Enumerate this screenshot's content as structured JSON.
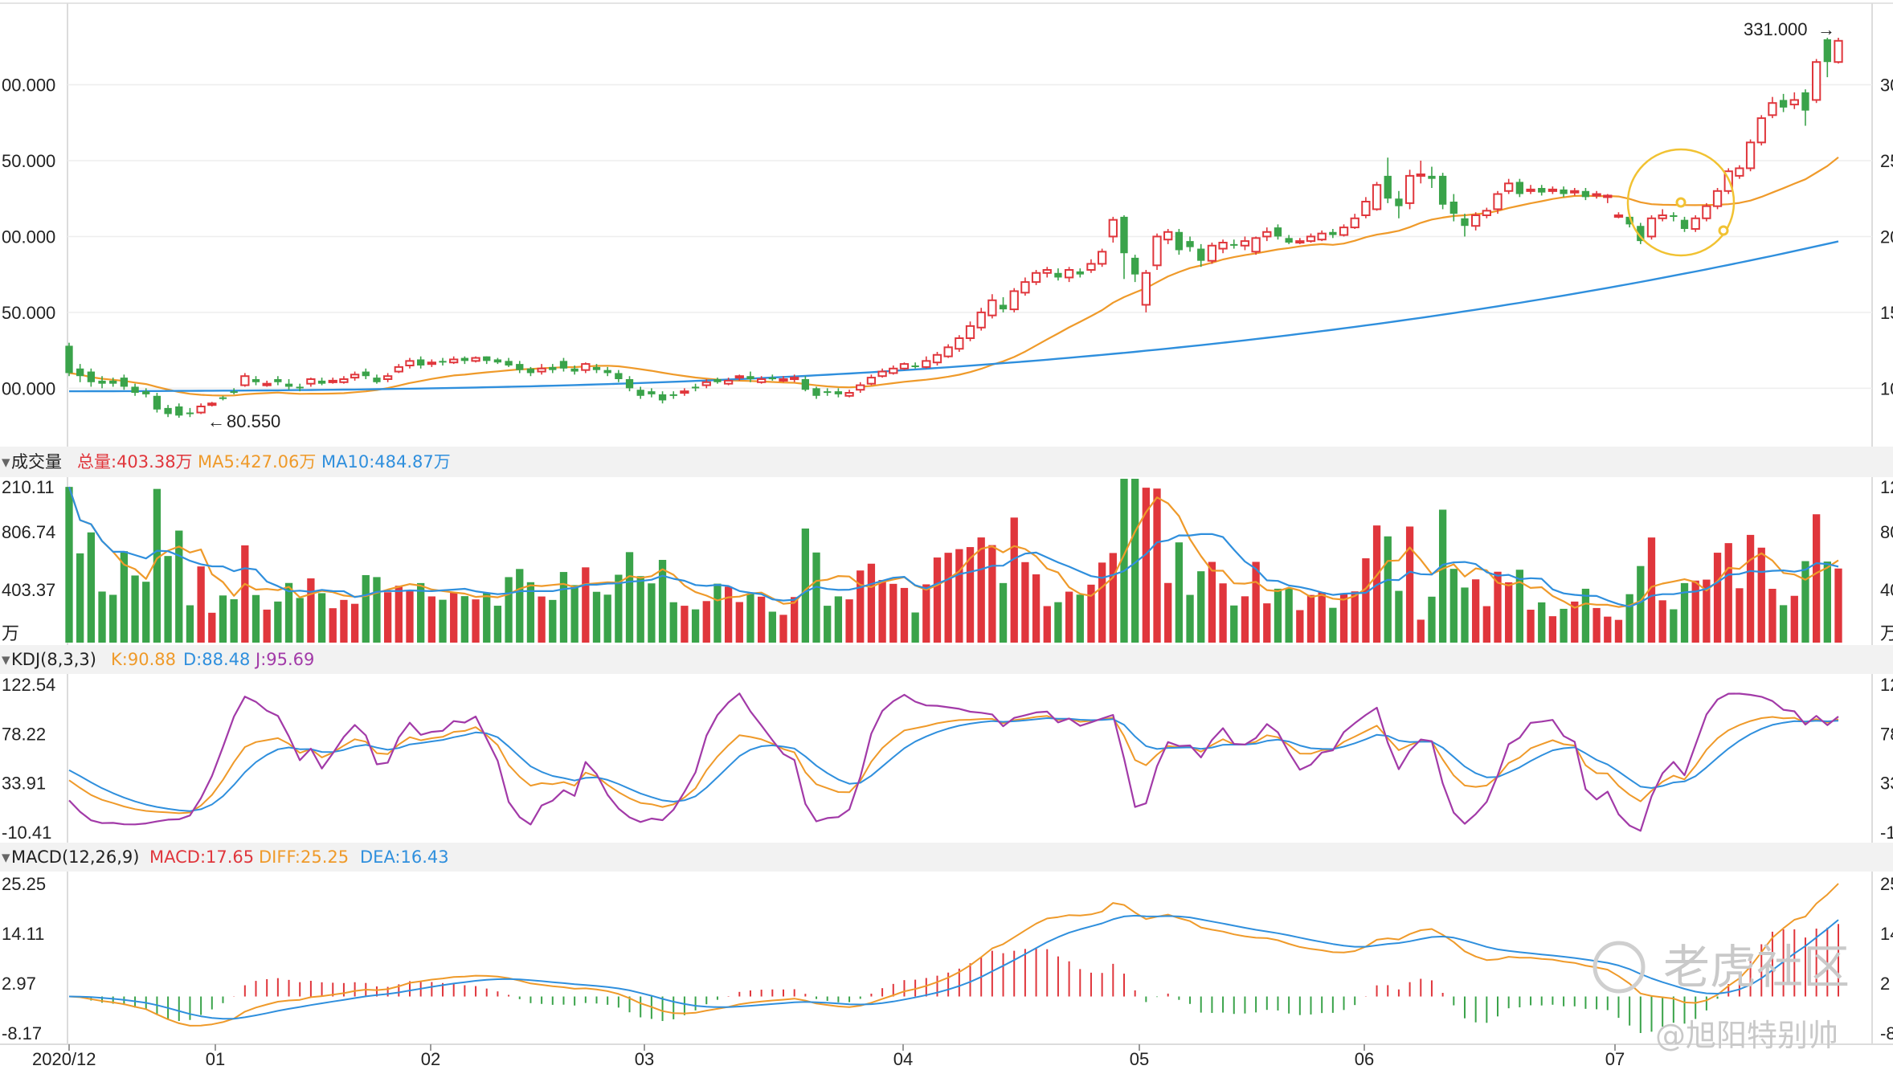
{
  "colors": {
    "up": "#e0363c",
    "down": "#3aa34a",
    "ma_orange": "#ef9a2a",
    "ma_blue": "#2f8fdd",
    "kdj_j": "#a23aa8",
    "grid": "#eeeeee",
    "panel_header": "#f2f2f2",
    "highlight": "#f1c232"
  },
  "watermark": {
    "text": "老虎社区",
    "author": "@旭阳特别帅"
  },
  "price_panel": {
    "ylabels_left": [
      "00.000",
      "50.000",
      "00.000",
      "50.000",
      "00.000"
    ],
    "ylabels_right": [
      "30",
      "25",
      "20",
      "15",
      "10"
    ],
    "high_label": "331.000",
    "low_label": "80.550"
  },
  "volume_panel": {
    "header": {
      "name": "成交量",
      "total": "总量:403.38万",
      "ma5": "MA5:427.06万",
      "ma10": "MA10:484.87万"
    },
    "ylabels_left": [
      "210.11",
      "806.74",
      "403.37",
      "万"
    ],
    "ylabels_right": [
      "12",
      "80",
      "40",
      "万"
    ]
  },
  "kdj_panel": {
    "header": {
      "name": "KDJ(8,3,3)",
      "k": "K:90.88",
      "d": "D:88.48",
      "j": "J:95.69"
    },
    "ylabels_left": [
      "122.54",
      "78.22",
      "33.91",
      "-10.41"
    ],
    "ylabels_right": [
      "12",
      "78",
      "33",
      "-1"
    ]
  },
  "macd_panel": {
    "header": {
      "name": "MACD(12,26,9)",
      "macd": "MACD:17.65",
      "diff": "DIFF:25.25",
      "dea": "DEA:16.43"
    },
    "ylabels_left": [
      "25.25",
      "14.11",
      "2.97",
      "-8.17"
    ],
    "ylabels_right": [
      "25",
      "14",
      "2",
      "-8"
    ]
  },
  "x_axis": {
    "labels": [
      "2020/12",
      "01",
      "02",
      "03",
      "04",
      "05",
      "06",
      "07"
    ]
  },
  "chart_data": {
    "type": "candlestick",
    "period": "daily",
    "x_range": [
      "2020/12",
      "2021/07"
    ],
    "price_ylim": [
      70,
      340
    ],
    "price_high": 331.0,
    "price_low": 80.55,
    "candles": [
      {
        "o": 128,
        "c": 110,
        "h": 130,
        "l": 108
      },
      {
        "o": 113,
        "c": 108,
        "h": 116,
        "l": 104
      },
      {
        "o": 111,
        "c": 104,
        "h": 113,
        "l": 101
      },
      {
        "o": 105,
        "c": 103,
        "h": 108,
        "l": 100
      },
      {
        "o": 105,
        "c": 103,
        "h": 107,
        "l": 101
      },
      {
        "o": 107,
        "c": 101,
        "h": 109,
        "l": 99
      },
      {
        "o": 101,
        "c": 97,
        "h": 103,
        "l": 95
      },
      {
        "o": 98,
        "c": 96,
        "h": 100,
        "l": 94
      },
      {
        "o": 95,
        "c": 86,
        "h": 97,
        "l": 84
      },
      {
        "o": 87,
        "c": 83,
        "h": 89,
        "l": 81
      },
      {
        "o": 88,
        "c": 82,
        "h": 90,
        "l": 80.55
      },
      {
        "o": 84,
        "c": 83,
        "h": 87,
        "l": 81
      },
      {
        "o": 84,
        "c": 88,
        "h": 90,
        "l": 83
      },
      {
        "o": 89,
        "c": 90,
        "h": 91,
        "l": 88
      },
      {
        "o": 94,
        "c": 93,
        "h": 95,
        "l": 92
      },
      {
        "o": 98,
        "c": 97,
        "h": 100,
        "l": 96
      },
      {
        "o": 102,
        "c": 108,
        "h": 110,
        "l": 101
      },
      {
        "o": 106,
        "c": 104,
        "h": 108,
        "l": 102
      },
      {
        "o": 102,
        "c": 103,
        "h": 105,
        "l": 101
      },
      {
        "o": 106,
        "c": 104,
        "h": 108,
        "l": 102
      },
      {
        "o": 103,
        "c": 101,
        "h": 106,
        "l": 99
      },
      {
        "o": 101,
        "c": 100,
        "h": 103,
        "l": 98
      },
      {
        "o": 103,
        "c": 106,
        "h": 107,
        "l": 101
      },
      {
        "o": 105,
        "c": 103,
        "h": 107,
        "l": 102
      },
      {
        "o": 104,
        "c": 105,
        "h": 107,
        "l": 103
      },
      {
        "o": 104,
        "c": 106,
        "h": 108,
        "l": 103
      },
      {
        "o": 107,
        "c": 109,
        "h": 111,
        "l": 105
      },
      {
        "o": 111,
        "c": 108,
        "h": 113,
        "l": 106
      },
      {
        "o": 107,
        "c": 104,
        "h": 109,
        "l": 103
      },
      {
        "o": 106,
        "c": 108,
        "h": 110,
        "l": 104
      },
      {
        "o": 111,
        "c": 114,
        "h": 116,
        "l": 110
      },
      {
        "o": 115,
        "c": 118,
        "h": 120,
        "l": 113
      },
      {
        "o": 119,
        "c": 115,
        "h": 121,
        "l": 113
      },
      {
        "o": 116,
        "c": 117,
        "h": 119,
        "l": 114
      },
      {
        "o": 118,
        "c": 117,
        "h": 120,
        "l": 115
      },
      {
        "o": 117,
        "c": 119,
        "h": 121,
        "l": 116
      },
      {
        "o": 120,
        "c": 118,
        "h": 121,
        "l": 116
      },
      {
        "o": 118,
        "c": 120,
        "h": 121,
        "l": 117
      },
      {
        "o": 121,
        "c": 118,
        "h": 121,
        "l": 116
      },
      {
        "o": 119,
        "c": 117,
        "h": 120,
        "l": 116
      },
      {
        "o": 118,
        "c": 115,
        "h": 120,
        "l": 114
      },
      {
        "o": 116,
        "c": 112,
        "h": 118,
        "l": 110
      },
      {
        "o": 113,
        "c": 110,
        "h": 114,
        "l": 108
      },
      {
        "o": 111,
        "c": 113,
        "h": 116,
        "l": 109
      },
      {
        "o": 114,
        "c": 112,
        "h": 116,
        "l": 110
      },
      {
        "o": 118,
        "c": 113,
        "h": 120,
        "l": 111
      },
      {
        "o": 113,
        "c": 111,
        "h": 115,
        "l": 109
      },
      {
        "o": 112,
        "c": 116,
        "h": 117,
        "l": 110
      },
      {
        "o": 114,
        "c": 112,
        "h": 116,
        "l": 110
      },
      {
        "o": 112,
        "c": 110,
        "h": 114,
        "l": 108
      },
      {
        "o": 110,
        "c": 106,
        "h": 112,
        "l": 104
      },
      {
        "o": 106,
        "c": 100,
        "h": 108,
        "l": 98
      },
      {
        "o": 99,
        "c": 95,
        "h": 101,
        "l": 93
      },
      {
        "o": 98,
        "c": 96,
        "h": 100,
        "l": 94
      },
      {
        "o": 96,
        "c": 92,
        "h": 98,
        "l": 90
      },
      {
        "o": 96,
        "c": 95,
        "h": 98,
        "l": 93
      },
      {
        "o": 97,
        "c": 98,
        "h": 100,
        "l": 95
      },
      {
        "o": 101,
        "c": 100,
        "h": 103,
        "l": 98
      },
      {
        "o": 102,
        "c": 104,
        "h": 106,
        "l": 100
      },
      {
        "o": 106,
        "c": 104,
        "h": 107,
        "l": 103
      },
      {
        "o": 103,
        "c": 105,
        "h": 107,
        "l": 102
      },
      {
        "o": 107,
        "c": 108,
        "h": 109,
        "l": 105
      },
      {
        "o": 108,
        "c": 106,
        "h": 111,
        "l": 104
      },
      {
        "o": 104,
        "c": 106,
        "h": 108,
        "l": 103
      },
      {
        "o": 107,
        "c": 106,
        "h": 109,
        "l": 105
      },
      {
        "o": 105,
        "c": 106,
        "h": 108,
        "l": 104
      },
      {
        "o": 106,
        "c": 107,
        "h": 109,
        "l": 104
      },
      {
        "o": 106,
        "c": 99,
        "h": 108,
        "l": 98
      },
      {
        "o": 100,
        "c": 95,
        "h": 101,
        "l": 93
      },
      {
        "o": 98,
        "c": 97,
        "h": 100,
        "l": 95
      },
      {
        "o": 98,
        "c": 96,
        "h": 100,
        "l": 94
      },
      {
        "o": 95,
        "c": 97,
        "h": 99,
        "l": 94
      },
      {
        "o": 99,
        "c": 102,
        "h": 104,
        "l": 97
      },
      {
        "o": 103,
        "c": 107,
        "h": 109,
        "l": 102
      },
      {
        "o": 108,
        "c": 111,
        "h": 113,
        "l": 107
      },
      {
        "o": 110,
        "c": 113,
        "h": 115,
        "l": 109
      },
      {
        "o": 113,
        "c": 116,
        "h": 117,
        "l": 112
      },
      {
        "o": 115,
        "c": 114,
        "h": 117,
        "l": 113
      },
      {
        "o": 114,
        "c": 118,
        "h": 121,
        "l": 113
      },
      {
        "o": 117,
        "c": 122,
        "h": 124,
        "l": 115
      },
      {
        "o": 121,
        "c": 127,
        "h": 129,
        "l": 120
      },
      {
        "o": 126,
        "c": 133,
        "h": 135,
        "l": 124
      },
      {
        "o": 133,
        "c": 141,
        "h": 144,
        "l": 131
      },
      {
        "o": 140,
        "c": 150,
        "h": 153,
        "l": 138
      },
      {
        "o": 148,
        "c": 158,
        "h": 162,
        "l": 146
      },
      {
        "o": 155,
        "c": 152,
        "h": 160,
        "l": 150
      },
      {
        "o": 152,
        "c": 164,
        "h": 166,
        "l": 150
      },
      {
        "o": 163,
        "c": 170,
        "h": 173,
        "l": 161
      },
      {
        "o": 170,
        "c": 176,
        "h": 178,
        "l": 168
      },
      {
        "o": 176,
        "c": 178,
        "h": 180,
        "l": 173
      },
      {
        "o": 176,
        "c": 173,
        "h": 179,
        "l": 171
      },
      {
        "o": 173,
        "c": 178,
        "h": 180,
        "l": 170
      },
      {
        "o": 177,
        "c": 175,
        "h": 179,
        "l": 173
      },
      {
        "o": 178,
        "c": 182,
        "h": 185,
        "l": 176
      },
      {
        "o": 182,
        "c": 190,
        "h": 192,
        "l": 180
      },
      {
        "o": 200,
        "c": 211,
        "h": 213,
        "l": 196
      },
      {
        "o": 213,
        "c": 189,
        "h": 214,
        "l": 172
      },
      {
        "o": 186,
        "c": 175,
        "h": 188,
        "l": 170
      },
      {
        "o": 155,
        "c": 176,
        "h": 178,
        "l": 150
      },
      {
        "o": 181,
        "c": 200,
        "h": 202,
        "l": 178
      },
      {
        "o": 198,
        "c": 203,
        "h": 205,
        "l": 195
      },
      {
        "o": 203,
        "c": 191,
        "h": 205,
        "l": 188
      },
      {
        "o": 197,
        "c": 193,
        "h": 200,
        "l": 190
      },
      {
        "o": 192,
        "c": 184,
        "h": 195,
        "l": 180
      },
      {
        "o": 184,
        "c": 194,
        "h": 196,
        "l": 182
      },
      {
        "o": 192,
        "c": 196,
        "h": 198,
        "l": 189
      },
      {
        "o": 195,
        "c": 194,
        "h": 198,
        "l": 192
      },
      {
        "o": 194,
        "c": 197,
        "h": 200,
        "l": 191
      },
      {
        "o": 190,
        "c": 199,
        "h": 200,
        "l": 188
      },
      {
        "o": 200,
        "c": 203,
        "h": 206,
        "l": 197
      },
      {
        "o": 206,
        "c": 200,
        "h": 208,
        "l": 198
      },
      {
        "o": 199,
        "c": 196,
        "h": 201,
        "l": 195
      },
      {
        "o": 197,
        "c": 197,
        "h": 199,
        "l": 195
      },
      {
        "o": 197,
        "c": 200,
        "h": 202,
        "l": 196
      },
      {
        "o": 198,
        "c": 202,
        "h": 204,
        "l": 197
      },
      {
        "o": 203,
        "c": 201,
        "h": 205,
        "l": 199
      },
      {
        "o": 201,
        "c": 206,
        "h": 208,
        "l": 200
      },
      {
        "o": 206,
        "c": 212,
        "h": 215,
        "l": 205
      },
      {
        "o": 214,
        "c": 223,
        "h": 226,
        "l": 212
      },
      {
        "o": 218,
        "c": 234,
        "h": 236,
        "l": 217
      },
      {
        "o": 240,
        "c": 225,
        "h": 252,
        "l": 222
      },
      {
        "o": 225,
        "c": 220,
        "h": 230,
        "l": 212
      },
      {
        "o": 222,
        "c": 240,
        "h": 244,
        "l": 218
      },
      {
        "o": 240,
        "c": 241,
        "h": 250,
        "l": 235
      },
      {
        "o": 240,
        "c": 238,
        "h": 246,
        "l": 232
      },
      {
        "o": 240,
        "c": 221,
        "h": 242,
        "l": 218
      },
      {
        "o": 223,
        "c": 215,
        "h": 228,
        "l": 210
      },
      {
        "o": 212,
        "c": 207,
        "h": 215,
        "l": 200
      },
      {
        "o": 207,
        "c": 214,
        "h": 216,
        "l": 204
      },
      {
        "o": 214,
        "c": 217,
        "h": 219,
        "l": 212
      },
      {
        "o": 218,
        "c": 228,
        "h": 230,
        "l": 215
      },
      {
        "o": 230,
        "c": 235,
        "h": 238,
        "l": 228
      },
      {
        "o": 236,
        "c": 228,
        "h": 238,
        "l": 226
      },
      {
        "o": 230,
        "c": 231,
        "h": 234,
        "l": 228
      },
      {
        "o": 232,
        "c": 229,
        "h": 234,
        "l": 227
      },
      {
        "o": 230,
        "c": 231,
        "h": 233,
        "l": 228
      },
      {
        "o": 231,
        "c": 228,
        "h": 233,
        "l": 226
      },
      {
        "o": 229,
        "c": 230,
        "h": 232,
        "l": 227
      },
      {
        "o": 230,
        "c": 226,
        "h": 232,
        "l": 224
      },
      {
        "o": 227,
        "c": 228,
        "h": 230,
        "l": 225
      },
      {
        "o": 227,
        "c": 227,
        "h": 228,
        "l": 222
      },
      {
        "o": 214,
        "c": 214,
        "h": 216,
        "l": 212
      },
      {
        "o": 213,
        "c": 208,
        "h": 215,
        "l": 206
      },
      {
        "o": 207,
        "c": 197,
        "h": 209,
        "l": 195
      },
      {
        "o": 200,
        "c": 212,
        "h": 214,
        "l": 198
      },
      {
        "o": 212,
        "c": 214,
        "h": 218,
        "l": 210
      },
      {
        "o": 214,
        "c": 213,
        "h": 216,
        "l": 210
      },
      {
        "o": 211,
        "c": 205,
        "h": 213,
        "l": 203
      },
      {
        "o": 205,
        "c": 212,
        "h": 214,
        "l": 203
      },
      {
        "o": 212,
        "c": 220,
        "h": 222,
        "l": 210
      },
      {
        "o": 220,
        "c": 230,
        "h": 232,
        "l": 218
      },
      {
        "o": 230,
        "c": 243,
        "h": 245,
        "l": 228
      },
      {
        "o": 240,
        "c": 245,
        "h": 247,
        "l": 238
      },
      {
        "o": 245,
        "c": 262,
        "h": 264,
        "l": 243
      },
      {
        "o": 262,
        "c": 278,
        "h": 280,
        "l": 260
      },
      {
        "o": 280,
        "c": 288,
        "h": 292,
        "l": 278
      },
      {
        "o": 290,
        "c": 285,
        "h": 294,
        "l": 282
      },
      {
        "o": 287,
        "c": 290,
        "h": 295,
        "l": 284
      },
      {
        "o": 295,
        "c": 283,
        "h": 297,
        "l": 273
      },
      {
        "o": 290,
        "c": 315,
        "h": 317,
        "l": 288
      },
      {
        "o": 330,
        "c": 315,
        "h": 331,
        "l": 305
      },
      {
        "o": 315,
        "c": 329,
        "h": 331,
        "l": 314
      }
    ],
    "volume": {
      "ylim": [
        0,
        1210.11
      ],
      "unit": "万",
      "total": 403.38,
      "ma5": 427.06,
      "ma10": 484.87
    },
    "kdj": {
      "params": "8,3,3",
      "K": 90.88,
      "D": 88.48,
      "J": 95.69,
      "ylim": [
        -10.41,
        122.54
      ]
    },
    "macd": {
      "params": "12,26,9",
      "MACD": 17.65,
      "DIFF": 25.25,
      "DEA": 16.43,
      "ylim": [
        -8.17,
        25.25
      ]
    }
  }
}
